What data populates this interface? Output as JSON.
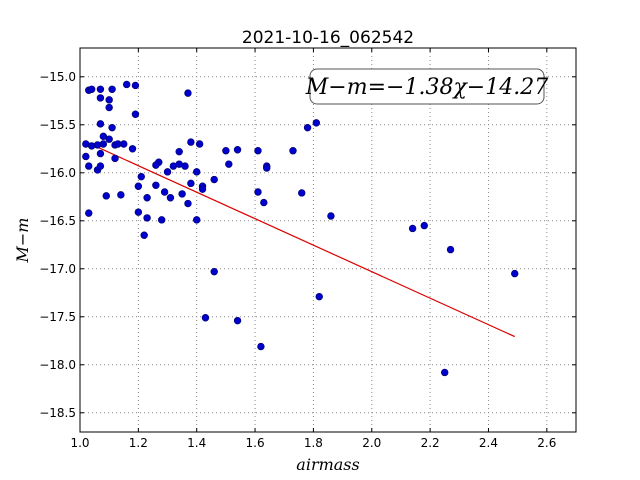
{
  "chart_data": {
    "type": "scatter",
    "title": "2021-10-16_062542",
    "xlabel": "airmass",
    "ylabel": "M−m",
    "annotation": "M−m=−1.38χ−14.27",
    "xlim": [
      1.0,
      2.7
    ],
    "ylim": [
      -14.7,
      -18.7
    ],
    "y_inverted": true,
    "grid": true,
    "x_ticks": [
      "1.0",
      "1.2",
      "1.4",
      "1.6",
      "1.8",
      "2.0",
      "2.2",
      "2.4",
      "2.6"
    ],
    "y_ticks": [
      "−15.0",
      "−15.5",
      "−16.0",
      "−16.5",
      "−17.0",
      "−17.5",
      "−18.0",
      "−18.5"
    ],
    "point_color": "#0000cc",
    "fit_color": "#dd0000",
    "fit": {
      "slope": -1.38,
      "intercept": -14.27,
      "x_range": [
        1.03,
        2.49
      ]
    },
    "points": [
      {
        "x": 1.03,
        "y": -15.14
      },
      {
        "x": 1.04,
        "y": -15.13
      },
      {
        "x": 1.07,
        "y": -15.13
      },
      {
        "x": 1.11,
        "y": -15.13
      },
      {
        "x": 1.16,
        "y": -15.08
      },
      {
        "x": 1.19,
        "y": -15.09
      },
      {
        "x": 1.37,
        "y": -15.17
      },
      {
        "x": 1.07,
        "y": -15.22
      },
      {
        "x": 1.1,
        "y": -15.24
      },
      {
        "x": 1.1,
        "y": -15.32
      },
      {
        "x": 1.19,
        "y": -15.39
      },
      {
        "x": 1.07,
        "y": -15.49
      },
      {
        "x": 1.11,
        "y": -15.53
      },
      {
        "x": 1.81,
        "y": -15.48
      },
      {
        "x": 1.78,
        "y": -15.53
      },
      {
        "x": 1.08,
        "y": -15.62
      },
      {
        "x": 1.1,
        "y": -15.65
      },
      {
        "x": 1.02,
        "y": -15.7
      },
      {
        "x": 1.04,
        "y": -15.72
      },
      {
        "x": 1.06,
        "y": -15.71
      },
      {
        "x": 1.08,
        "y": -15.7
      },
      {
        "x": 1.12,
        "y": -15.71
      },
      {
        "x": 1.13,
        "y": -15.7
      },
      {
        "x": 1.15,
        "y": -15.7
      },
      {
        "x": 1.18,
        "y": -15.75
      },
      {
        "x": 1.38,
        "y": -15.68
      },
      {
        "x": 1.41,
        "y": -15.7
      },
      {
        "x": 1.34,
        "y": -15.78
      },
      {
        "x": 1.5,
        "y": -15.77
      },
      {
        "x": 1.54,
        "y": -15.76
      },
      {
        "x": 1.61,
        "y": -15.77
      },
      {
        "x": 1.73,
        "y": -15.77
      },
      {
        "x": 1.02,
        "y": -15.83
      },
      {
        "x": 1.07,
        "y": -15.8
      },
      {
        "x": 1.12,
        "y": -15.85
      },
      {
        "x": 1.27,
        "y": -15.89
      },
      {
        "x": 1.26,
        "y": -15.92
      },
      {
        "x": 1.32,
        "y": -15.93
      },
      {
        "x": 1.34,
        "y": -15.91
      },
      {
        "x": 1.36,
        "y": -15.93
      },
      {
        "x": 1.51,
        "y": -15.91
      },
      {
        "x": 1.64,
        "y": -15.93
      },
      {
        "x": 1.64,
        "y": -15.95
      },
      {
        "x": 1.03,
        "y": -15.93
      },
      {
        "x": 1.06,
        "y": -15.97
      },
      {
        "x": 1.07,
        "y": -15.93
      },
      {
        "x": 1.3,
        "y": -15.99
      },
      {
        "x": 1.4,
        "y": -15.99
      },
      {
        "x": 1.21,
        "y": -16.04
      },
      {
        "x": 1.46,
        "y": -16.07
      },
      {
        "x": 1.2,
        "y": -16.14
      },
      {
        "x": 1.26,
        "y": -16.13
      },
      {
        "x": 1.38,
        "y": -16.11
      },
      {
        "x": 1.42,
        "y": -16.14
      },
      {
        "x": 1.42,
        "y": -16.17
      },
      {
        "x": 1.09,
        "y": -16.24
      },
      {
        "x": 1.14,
        "y": -16.23
      },
      {
        "x": 1.23,
        "y": -16.26
      },
      {
        "x": 1.29,
        "y": -16.2
      },
      {
        "x": 1.31,
        "y": -16.26
      },
      {
        "x": 1.35,
        "y": -16.22
      },
      {
        "x": 1.37,
        "y": -16.32
      },
      {
        "x": 1.61,
        "y": -16.2
      },
      {
        "x": 1.63,
        "y": -16.31
      },
      {
        "x": 1.76,
        "y": -16.21
      },
      {
        "x": 1.03,
        "y": -16.42
      },
      {
        "x": 1.2,
        "y": -16.41
      },
      {
        "x": 1.23,
        "y": -16.47
      },
      {
        "x": 1.28,
        "y": -16.49
      },
      {
        "x": 1.4,
        "y": -16.49
      },
      {
        "x": 1.86,
        "y": -16.45
      },
      {
        "x": 1.22,
        "y": -16.65
      },
      {
        "x": 2.14,
        "y": -16.58
      },
      {
        "x": 2.18,
        "y": -16.55
      },
      {
        "x": 2.27,
        "y": -16.8
      },
      {
        "x": 1.46,
        "y": -17.03
      },
      {
        "x": 2.49,
        "y": -17.05
      },
      {
        "x": 1.82,
        "y": -17.29
      },
      {
        "x": 1.43,
        "y": -17.51
      },
      {
        "x": 1.54,
        "y": -17.54
      },
      {
        "x": 1.62,
        "y": -17.81
      },
      {
        "x": 2.25,
        "y": -18.08
      }
    ]
  }
}
